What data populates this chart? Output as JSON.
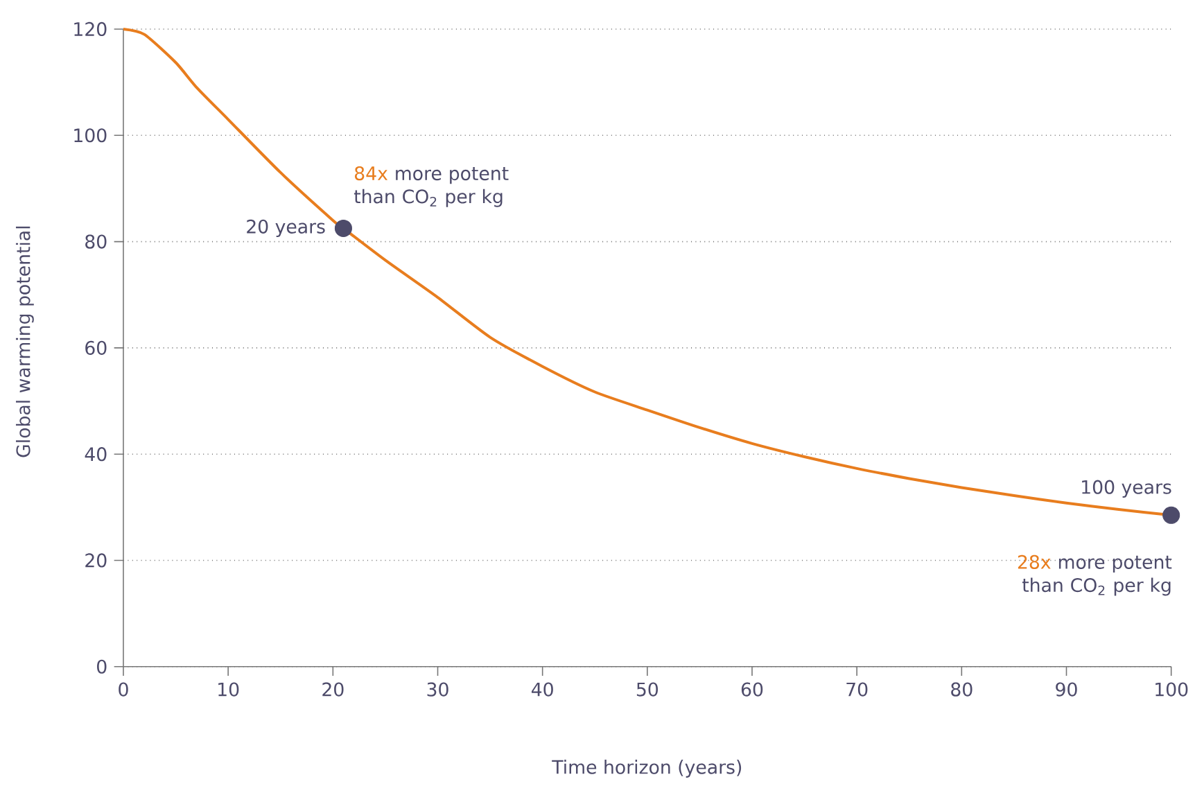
{
  "chart_data": {
    "type": "line",
    "xlabel": "Time horizon (years)",
    "ylabel": "Global warming potential",
    "xlim": [
      0,
      100
    ],
    "ylim": [
      0,
      120
    ],
    "xticks": [
      0,
      10,
      20,
      30,
      40,
      50,
      60,
      70,
      80,
      90,
      100
    ],
    "yticks": [
      0,
      20,
      40,
      60,
      80,
      100,
      120
    ],
    "grid": "y",
    "series": [
      {
        "color": "#e87d1e",
        "x": [
          0,
          2,
          5,
          7,
          10,
          15,
          20,
          21,
          25,
          30,
          35,
          40,
          45,
          50,
          55,
          60,
          65,
          70,
          75,
          80,
          85,
          90,
          95,
          100
        ],
        "values": [
          120,
          119,
          113.7,
          109,
          103,
          93,
          84,
          82.5,
          76.5,
          69.5,
          62,
          56.5,
          51.7,
          48.3,
          45,
          42,
          39.5,
          37.3,
          35.4,
          33.7,
          32.2,
          30.8,
          29.6,
          28.5
        ]
      },
      {
        "type": "scatter",
        "color": "#4d4b6a",
        "x": [
          21,
          100
        ],
        "values": [
          82.5,
          28.5
        ]
      }
    ],
    "annotations": [
      {
        "text": "20 years",
        "x": 21,
        "y": 82.5
      },
      "84x",
      "more potent than CO$_{2}$ per kg",
      {
        "text": "100 years",
        "x": 100,
        "y": 28.5
      },
      "28x",
      "more potent than CO$_{2}$ per kg"
    ]
  }
}
